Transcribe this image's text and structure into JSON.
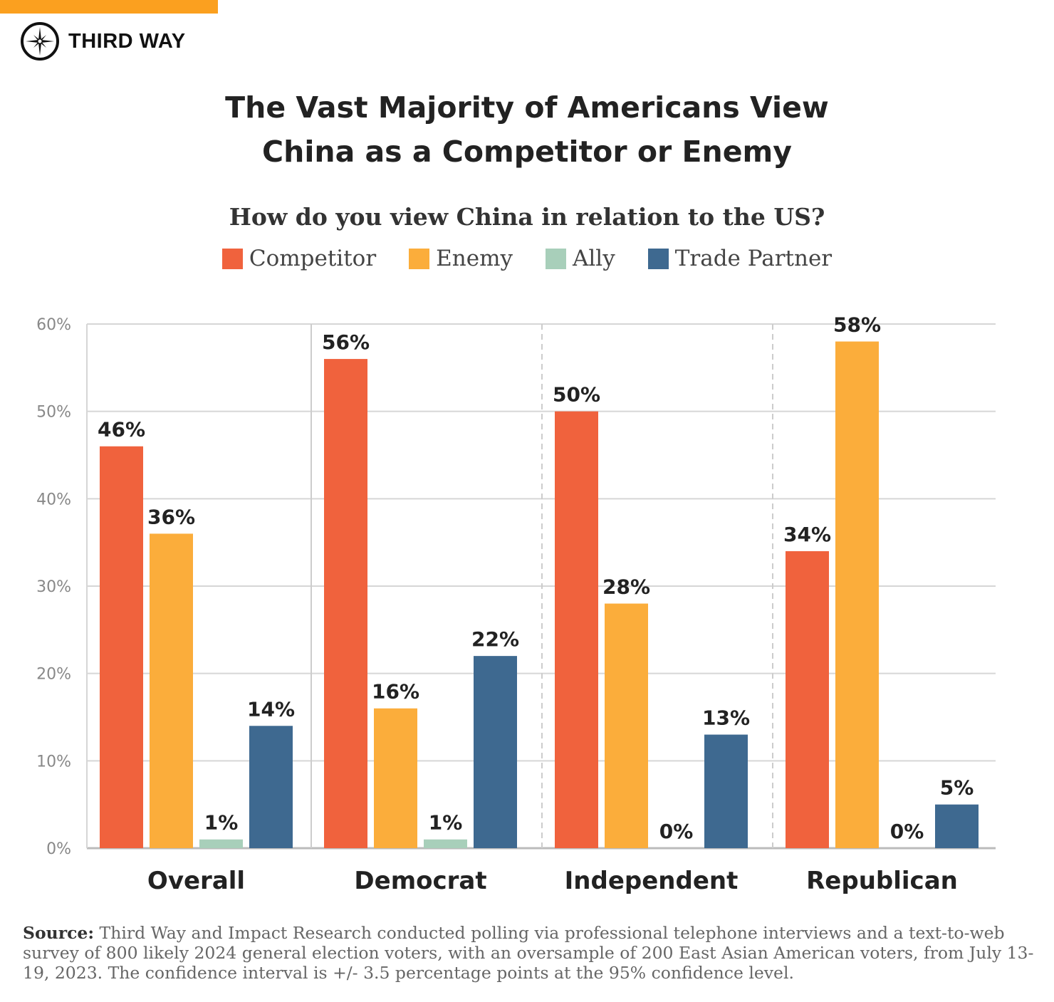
{
  "brand": {
    "name": "THIRD WAY",
    "bar_color": "#FBA01F"
  },
  "title_lines": [
    "The Vast Majority of Americans View",
    "China as a Competitor or Enemy"
  ],
  "source": {
    "label": "Source:",
    "text": "Third Way and Impact Research conducted polling via professional telephone interviews and a text-to-web survey of 800 likely 2024 general election voters, with an oversample of 200 East Asian American voters, from July 13-19, 2023. The confidence interval is +/- 3.5 percentage points at the 95% confidence level."
  },
  "chart_data": {
    "type": "bar",
    "subtitle": "How do you view China in relation to the US?",
    "categories": [
      "Overall",
      "Democrat",
      "Independent",
      "Republican"
    ],
    "series": [
      {
        "name": "Competitor",
        "color": "#F0623D",
        "values": [
          46,
          56,
          50,
          34
        ]
      },
      {
        "name": "Enemy",
        "color": "#FBAD3B",
        "values": [
          36,
          16,
          28,
          58
        ]
      },
      {
        "name": "Ally",
        "color": "#A8CFBA",
        "values": [
          1,
          1,
          0,
          0
        ]
      },
      {
        "name": "Trade Partner",
        "color": "#3E6990",
        "values": [
          14,
          22,
          13,
          5
        ]
      }
    ],
    "yticks": [
      "0%",
      "10%",
      "20%",
      "30%",
      "40%",
      "50%",
      "60%"
    ],
    "ylim": [
      0,
      60
    ],
    "grid": true,
    "legend": "top-center",
    "value_suffix": "%"
  }
}
